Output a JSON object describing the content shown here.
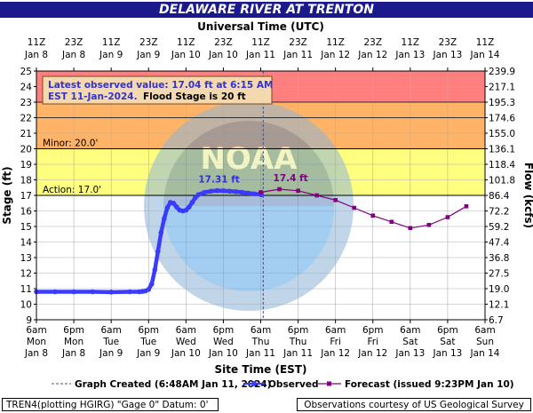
{
  "title": "DELAWARE RIVER AT TRENTON",
  "top_axis_title": "Universal Time (UTC)",
  "bottom_axis_title": "Site Time (EST)",
  "left_axis_title": "Stage (ft)",
  "right_axis_title": "Flow (kcfs)",
  "notice": {
    "line1": "Latest observed value: 17.04 ft at 6:15 AM",
    "line2": "EST 11-Jan-2024.",
    "line2b": "Flood Stage is 20 ft"
  },
  "watermark_text": "NOAA",
  "thresholds": [
    {
      "label": "Minor: 20.0'",
      "value": 20.0
    },
    {
      "label": "Action: 17.0'",
      "value": 17.0
    }
  ],
  "annotations": [
    {
      "text": "17.31 ft",
      "series": "Observed"
    },
    {
      "text": "17.4 ft",
      "series": "Forecast"
    }
  ],
  "legend": [
    {
      "text": "Graph Created (6:48AM Jan 11, 2024)",
      "kind": "dash"
    },
    {
      "text": "Observed",
      "kind": "observed"
    },
    {
      "text": "Forecast (issued 9:23PM Jan 10)",
      "kind": "forecast"
    }
  ],
  "footer_left": "TREN4(plotting HGIRG) \"Gage 0\" Datum: 0'",
  "footer_right": "Observations courtesy of US Geological Survey",
  "colors": {
    "title_bg": "#1a1a8c",
    "major": "#ff7f7f",
    "moderate": "#ffb366",
    "minor": "#ffff7f",
    "observed": "#3b3bff",
    "forecast": "#800080",
    "notice_text": "#3333cc",
    "ann_observed": "#3333cc",
    "ann_forecast": "#800080"
  },
  "chart_data": {
    "type": "line",
    "x_unit": "hours since 6am Jan 8 (EST)",
    "xlim": [
      0,
      144
    ],
    "ylim": [
      9,
      25
    ],
    "y_ticks": [
      9,
      10,
      11,
      12,
      13,
      14,
      15,
      16,
      17,
      18,
      19,
      20,
      21,
      22,
      23,
      24,
      25
    ],
    "flow_ticks": [
      "6.7",
      "12.1",
      "19.0",
      "27.5",
      "36.8",
      "47.4",
      "59.2",
      "72.2",
      "86.4",
      "101.8",
      "118.4",
      "136.1",
      "155.0",
      "174.6",
      "195.3",
      "217.1",
      "239.9"
    ],
    "top_ticks": [
      {
        "l1": "11Z",
        "l2": "Jan 8"
      },
      {
        "l1": "23Z",
        "l2": "Jan 8"
      },
      {
        "l1": "11Z",
        "l2": "Jan 9"
      },
      {
        "l1": "23Z",
        "l2": "Jan 9"
      },
      {
        "l1": "11Z",
        "l2": "Jan 10"
      },
      {
        "l1": "23Z",
        "l2": "Jan 10"
      },
      {
        "l1": "11Z",
        "l2": "Jan 11"
      },
      {
        "l1": "23Z",
        "l2": "Jan 11"
      },
      {
        "l1": "11Z",
        "l2": "Jan 12"
      },
      {
        "l1": "23Z",
        "l2": "Jan 12"
      },
      {
        "l1": "11Z",
        "l2": "Jan 13"
      },
      {
        "l1": "23Z",
        "l2": "Jan 13"
      },
      {
        "l1": "11Z",
        "l2": "Jan 14"
      }
    ],
    "bottom_ticks": [
      {
        "l1": "6am",
        "l2": "Mon",
        "l3": "Jan 8"
      },
      {
        "l1": "6pm",
        "l2": "Mon",
        "l3": "Jan 8"
      },
      {
        "l1": "6am",
        "l2": "Tue",
        "l3": "Jan 9"
      },
      {
        "l1": "6pm",
        "l2": "Tue",
        "l3": "Jan 9"
      },
      {
        "l1": "6am",
        "l2": "Wed",
        "l3": "Jan 10"
      },
      {
        "l1": "6pm",
        "l2": "Wed",
        "l3": "Jan 10"
      },
      {
        "l1": "6am",
        "l2": "Thu",
        "l3": "Jan 11"
      },
      {
        "l1": "6pm",
        "l2": "Thu",
        "l3": "Jan 11"
      },
      {
        "l1": "6am",
        "l2": "Fri",
        "l3": "Jan 12"
      },
      {
        "l1": "6pm",
        "l2": "Fri",
        "l3": "Jan 12"
      },
      {
        "l1": "6am",
        "l2": "Sat",
        "l3": "Jan 13"
      },
      {
        "l1": "6pm",
        "l2": "Sat",
        "l3": "Jan 13"
      },
      {
        "l1": "6am",
        "l2": "Sun",
        "l3": "Jan 14"
      }
    ],
    "flood_categories": [
      {
        "name": "major",
        "from": 23,
        "to": 25
      },
      {
        "name": "moderate",
        "from": 22,
        "to": 23
      },
      {
        "name": "moderate",
        "from": 20,
        "to": 22
      },
      {
        "name": "minor",
        "from": 17,
        "to": 20
      }
    ],
    "graph_created_x": 72.8,
    "series": [
      {
        "name": "Observed",
        "points": [
          [
            0,
            10.8
          ],
          [
            6,
            10.8
          ],
          [
            12,
            10.8
          ],
          [
            18,
            10.8
          ],
          [
            24,
            10.78
          ],
          [
            30,
            10.8
          ],
          [
            33,
            10.8
          ],
          [
            34,
            10.82
          ],
          [
            35,
            10.85
          ],
          [
            36,
            10.95
          ],
          [
            37,
            11.3
          ],
          [
            38,
            12.2
          ],
          [
            39,
            13.4
          ],
          [
            40,
            14.6
          ],
          [
            41,
            15.5
          ],
          [
            42,
            16.2
          ],
          [
            43,
            16.55
          ],
          [
            44,
            16.5
          ],
          [
            45,
            16.25
          ],
          [
            46,
            16.05
          ],
          [
            47,
            16.0
          ],
          [
            48,
            16.05
          ],
          [
            49,
            16.25
          ],
          [
            50,
            16.55
          ],
          [
            51,
            16.85
          ],
          [
            52,
            17.05
          ],
          [
            54,
            17.2
          ],
          [
            56,
            17.27
          ],
          [
            58,
            17.31
          ],
          [
            60,
            17.3
          ],
          [
            62,
            17.27
          ],
          [
            64,
            17.24
          ],
          [
            66,
            17.2
          ],
          [
            68,
            17.15
          ],
          [
            70,
            17.1
          ],
          [
            72,
            17.06
          ],
          [
            72.25,
            17.04
          ]
        ]
      },
      {
        "name": "Forecast",
        "points": [
          [
            72,
            17.2
          ],
          [
            78,
            17.4
          ],
          [
            84,
            17.3
          ],
          [
            90,
            17.0
          ],
          [
            96,
            16.7
          ],
          [
            102,
            16.2
          ],
          [
            108,
            15.7
          ],
          [
            114,
            15.3
          ],
          [
            120,
            14.9
          ],
          [
            126,
            15.1
          ],
          [
            132,
            15.6
          ],
          [
            138,
            16.3
          ]
        ]
      }
    ]
  }
}
